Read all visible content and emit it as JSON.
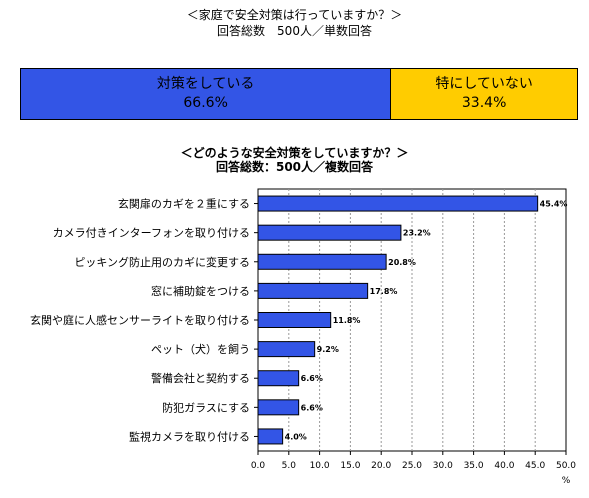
{
  "survey1": {
    "title": "＜家庭で安全対策は行っていますか？＞",
    "subtitle": "回答総数　500人／単数回答",
    "segments": [
      {
        "label": "対策をしている",
        "value_label": "66.6%",
        "value": 66.6,
        "color": "#3355e6"
      },
      {
        "label": "特にしていない",
        "value_label": "33.4%",
        "value": 33.4,
        "color": "#ffcc00"
      }
    ]
  },
  "chart_data": {
    "type": "bar",
    "orientation": "horizontal",
    "title": "＜どのような安全対策をしていますか？＞",
    "subtitle": "回答総数：500人／複数回答",
    "categories": [
      "玄関扉のカギを２重にする",
      "カメラ付きインターフォンを取り付ける",
      "ピッキング防止用のカギに変更する",
      "窓に補助錠をつける",
      "玄関や庭に人感センサーライトを取り付ける",
      "ペット（犬）を飼う",
      "警備会社と契約する",
      "防犯ガラスにする",
      "監視カメラを取り付ける"
    ],
    "values": [
      45.4,
      23.2,
      20.8,
      17.8,
      11.8,
      9.2,
      6.6,
      6.6,
      4.0
    ],
    "value_labels": [
      "45.4%",
      "23.2%",
      "20.8%",
      "17.8%",
      "11.8%",
      "9.2%",
      "6.6%",
      "6.6%",
      "4.0%"
    ],
    "xlim": [
      0,
      50
    ],
    "ticks": [
      "0.0",
      "5.0",
      "10.0",
      "15.0",
      "20.0",
      "25.0",
      "30.0",
      "35.0",
      "40.0",
      "45.0",
      "50.0"
    ],
    "xlabel": "%",
    "bar_color": "#3355e6",
    "grid": true
  }
}
